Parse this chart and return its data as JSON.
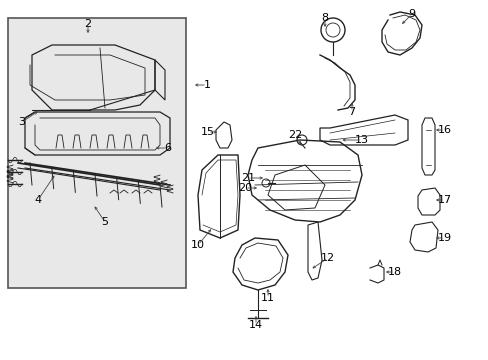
{
  "bg_color": "#ffffff",
  "line_color": "#222222",
  "text_color": "#000000",
  "box_color": "#e8e8e8",
  "figsize": [
    4.89,
    3.6
  ],
  "dpi": 100
}
